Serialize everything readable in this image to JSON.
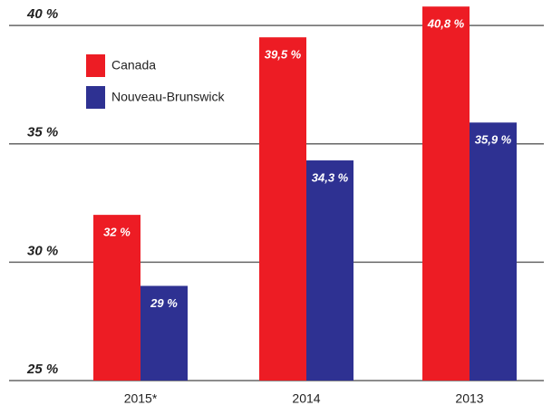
{
  "chart_data": {
    "type": "bar",
    "categories": [
      "2015*",
      "2014",
      "2013"
    ],
    "series": [
      {
        "name": "Canada",
        "color": "#ed1c24",
        "values": [
          32,
          39.5,
          40.8
        ],
        "value_labels": [
          "32 %",
          "39,5 %",
          "40,8 %"
        ]
      },
      {
        "name": "Nouveau-Brunswick",
        "color": "#2e3192",
        "values": [
          29,
          34.3,
          35.9
        ],
        "value_labels": [
          "29 %",
          "34,3 %",
          "35,9 %"
        ]
      }
    ],
    "ylim": [
      25,
      41
    ],
    "yticks": [
      {
        "value": 25,
        "label": "25 %"
      },
      {
        "value": 30,
        "label": "30 %"
      },
      {
        "value": 35,
        "label": "35 %"
      },
      {
        "value": 40,
        "label": "40 %"
      }
    ],
    "grid": true
  }
}
